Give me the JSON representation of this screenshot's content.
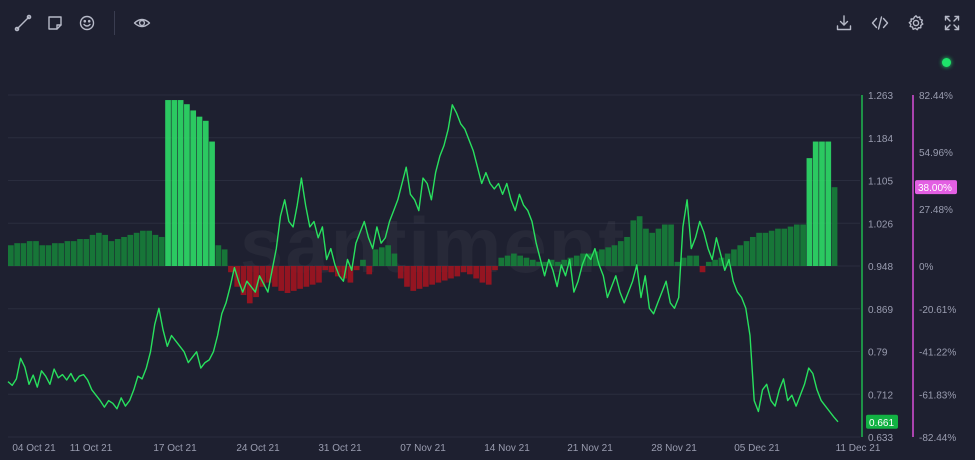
{
  "toolbar": {
    "left_icons": [
      "draw-line-icon",
      "note-icon",
      "emoji-icon",
      "eye-icon"
    ],
    "right_icons": [
      "download-icon",
      "embed-code-icon",
      "settings-icon",
      "fullscreen-icon"
    ]
  },
  "status": {
    "color": "#1ee36a"
  },
  "watermark": "santiment",
  "colors": {
    "price_line": "#28e05e",
    "bar_positive": "#16803a",
    "bar_positive_highlight": "#2ee86a",
    "bar_negative": "#a11420",
    "background": "#1e2030",
    "axis_right_green": "#1fb84f",
    "axis_right_pink": "#d84fd8"
  },
  "chart_data": {
    "type": "line",
    "x_ticks": [
      "04 Oct 21",
      "11 Oct 21",
      "17 Oct 21",
      "24 Oct 21",
      "31 Oct 21",
      "07 Nov 21",
      "14 Nov 21",
      "21 Nov 21",
      "28 Nov 21",
      "05 Dec 21",
      "11 Dec 21"
    ],
    "y_price_ticks": [
      "1.263",
      "1.184",
      "1.105",
      "1.026",
      "0.948",
      "0.869",
      "0.79",
      "0.712",
      "0.633"
    ],
    "y_price_range": [
      0.633,
      1.263
    ],
    "y_pct_ticks": [
      "82.44%",
      "54.96%",
      "27.48%",
      "0%",
      "-20.61%",
      "-41.22%",
      "-61.83%",
      "-82.44%"
    ],
    "y_pct_range": [
      -82.44,
      82.44
    ],
    "price_current_label": "0.661",
    "pct_current_label": "38.00%",
    "series": [
      {
        "kind": "line",
        "x_range": [
          "04 Oct 21",
          "11 Dec 21"
        ],
        "values": [
          0.735,
          0.728,
          0.74,
          0.778,
          0.762,
          0.73,
          0.747,
          0.725,
          0.755,
          0.745,
          0.73,
          0.758,
          0.742,
          0.748,
          0.738,
          0.75,
          0.735,
          0.745,
          0.748,
          0.738,
          0.72,
          0.71,
          0.7,
          0.688,
          0.7,
          0.695,
          0.685,
          0.705,
          0.69,
          0.7,
          0.72,
          0.745,
          0.74,
          0.76,
          0.79,
          0.84,
          0.87,
          0.83,
          0.8,
          0.82,
          0.81,
          0.8,
          0.79,
          0.77,
          0.78,
          0.79,
          0.76,
          0.77,
          0.775,
          0.79,
          0.82,
          0.86,
          0.88,
          0.91,
          0.945,
          0.92,
          0.9,
          0.92,
          0.91,
          0.9,
          0.93,
          0.915,
          0.9,
          0.94,
          0.98,
          1.04,
          1.07,
          1.03,
          1.02,
          1.06,
          1.11,
          1.06,
          1.02,
          1.03,
          1.0,
          1.02,
          0.96,
          0.98,
          0.95,
          0.93,
          0.92,
          0.96,
          0.94,
          0.99,
          1.01,
          1.03,
          1.0,
          0.98,
          1.02,
          0.99,
          1.0,
          1.03,
          1.05,
          1.07,
          1.1,
          1.13,
          1.08,
          1.07,
          1.05,
          1.11,
          1.1,
          1.07,
          1.12,
          1.15,
          1.17,
          1.2,
          1.245,
          1.23,
          1.21,
          1.2,
          1.18,
          1.16,
          1.13,
          1.1,
          1.12,
          1.1,
          1.09,
          1.1,
          1.08,
          1.1,
          1.07,
          1.05,
          1.08,
          1.06,
          1.05,
          1.03,
          0.99,
          0.96,
          0.93,
          0.96,
          0.94,
          0.91,
          0.95,
          0.93,
          0.96,
          0.9,
          0.92,
          0.95,
          0.97,
          0.96,
          0.98,
          0.95,
          0.93,
          0.89,
          0.91,
          0.93,
          0.9,
          0.88,
          0.9,
          0.92,
          0.95,
          0.89,
          0.93,
          0.87,
          0.86,
          0.88,
          0.9,
          0.92,
          0.88,
          0.87,
          0.89,
          1.02,
          1.07,
          0.98,
          1.0,
          1.03,
          1.01,
          0.98,
          0.96,
          1.0,
          0.97,
          0.94,
          0.96,
          0.92,
          0.9,
          0.89,
          0.87,
          0.82,
          0.7,
          0.68,
          0.72,
          0.73,
          0.7,
          0.69,
          0.72,
          0.74,
          0.7,
          0.71,
          0.69,
          0.71,
          0.73,
          0.76,
          0.75,
          0.72,
          0.7,
          0.69,
          0.68,
          0.67,
          0.661
        ]
      },
      {
        "kind": "bar",
        "unit": "percent",
        "values": [
          10,
          11,
          11,
          12,
          12,
          10,
          10,
          11,
          11,
          12,
          12,
          13,
          13,
          15,
          16,
          15,
          12,
          13,
          14,
          15,
          16,
          17,
          17,
          15,
          14,
          80,
          80,
          80,
          78,
          75,
          72,
          70,
          60,
          10,
          8,
          -3,
          -10,
          -14,
          -18,
          -15,
          -10,
          -8,
          -10,
          -12,
          -13,
          -12,
          -11,
          -10,
          -9,
          -8,
          -2,
          -3,
          -5,
          -6,
          -8,
          -2,
          3,
          -4,
          8,
          9,
          10,
          6,
          -6,
          -10,
          -12,
          -11,
          -10,
          -9,
          -8,
          -7,
          -6,
          -5,
          -3,
          -4,
          -6,
          -8,
          -9,
          -2,
          4,
          5,
          6,
          5,
          4,
          3,
          2,
          2,
          3,
          2,
          3,
          4,
          5,
          6,
          6,
          7,
          8,
          9,
          10,
          12,
          14,
          22,
          24,
          18,
          16,
          18,
          20,
          20,
          2,
          4,
          5,
          5,
          -3,
          2,
          3,
          4,
          6,
          8,
          10,
          12,
          14,
          16,
          16,
          17,
          18,
          18,
          19,
          20,
          20,
          52,
          60,
          60,
          60,
          38
        ]
      }
    ]
  }
}
